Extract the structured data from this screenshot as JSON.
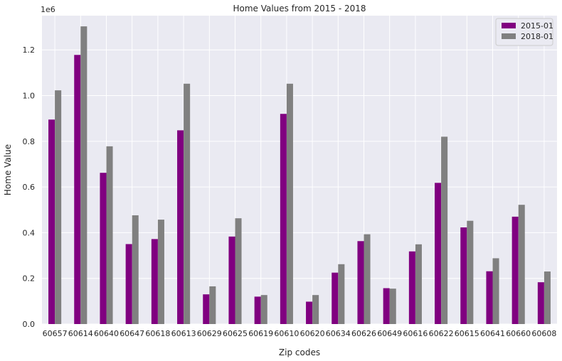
{
  "chart_data": {
    "type": "bar",
    "title": "Home Values from 2015 - 2018",
    "xlabel": "Zip codes",
    "ylabel": "Home Value",
    "y_offset_label": "1e6",
    "ylim": [
      0,
      1.35
    ],
    "yticks": [
      "0.0",
      "0.2",
      "0.4",
      "0.6",
      "0.8",
      "1.0",
      "1.2"
    ],
    "grid": true,
    "legend_position": "top-right",
    "categories": [
      "60657",
      "60614",
      "60640",
      "60647",
      "60618",
      "60613",
      "60629",
      "60625",
      "60619",
      "60610",
      "60620",
      "60634",
      "60626",
      "60649",
      "60616",
      "60622",
      "60615",
      "60641",
      "60660",
      "60608"
    ],
    "series": [
      {
        "name": "2015-01",
        "color": "#800080",
        "values": [
          0.895,
          1.178,
          0.662,
          0.35,
          0.372,
          0.848,
          0.13,
          0.383,
          0.12,
          0.92,
          0.098,
          0.225,
          0.363,
          0.157,
          0.318,
          0.618,
          0.423,
          0.231,
          0.47,
          0.183
        ]
      },
      {
        "name": "2018-01",
        "color": "#808080",
        "values": [
          1.023,
          1.303,
          0.778,
          0.476,
          0.457,
          1.052,
          0.165,
          0.463,
          0.127,
          1.052,
          0.127,
          0.262,
          0.393,
          0.155,
          0.349,
          0.82,
          0.452,
          0.288,
          0.522,
          0.23
        ]
      }
    ]
  }
}
